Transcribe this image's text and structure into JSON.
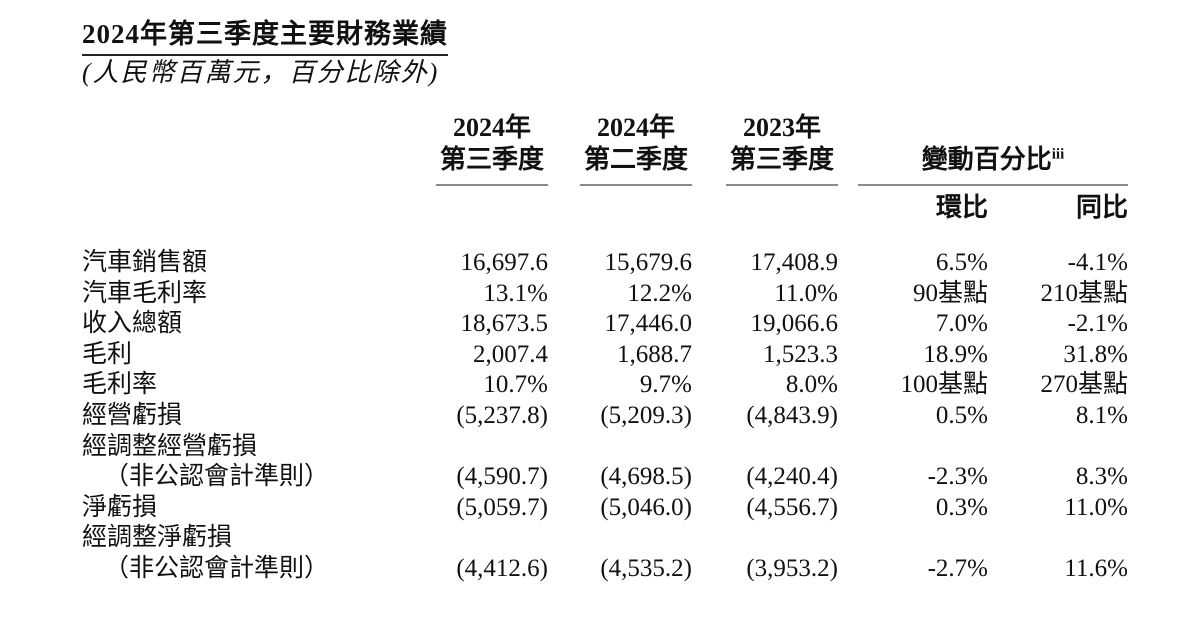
{
  "page": {
    "title": "2024年第三季度主要財務業績",
    "subtitle": "(人民幣百萬元，百分比除外)"
  },
  "table": {
    "col_headers": [
      {
        "line1": "2024年",
        "line2": "第三季度"
      },
      {
        "line1": "2024年",
        "line2": "第二季度"
      },
      {
        "line1": "2023年",
        "line2": "第三季度"
      }
    ],
    "change_group": {
      "label": "變動百分比",
      "superscript": "iii"
    },
    "sub_headers": {
      "qoq": "環比",
      "yoy": "同比"
    },
    "rows": [
      {
        "label": "汽車銷售額",
        "values": [
          "16,697.6",
          "15,679.6",
          "17,408.9",
          "6.5%",
          "-4.1%"
        ]
      },
      {
        "label": "汽車毛利率",
        "values": [
          "13.1%",
          "12.2%",
          "11.0%",
          "90基點",
          "210基點"
        ]
      },
      {
        "label": "收入總額",
        "values": [
          "18,673.5",
          "17,446.0",
          "19,066.6",
          "7.0%",
          "-2.1%"
        ]
      },
      {
        "label": "毛利",
        "values": [
          "2,007.4",
          "1,688.7",
          "1,523.3",
          "18.9%",
          "31.8%"
        ]
      },
      {
        "label": "毛利率",
        "values": [
          "10.7%",
          "9.7%",
          "8.0%",
          "100基點",
          "270基點"
        ]
      },
      {
        "label": "經營虧損",
        "values": [
          "(5,237.8)",
          "(5,209.3)",
          "(4,843.9)",
          "0.5%",
          "8.1%"
        ]
      },
      {
        "label": "經調整經營虧損",
        "values": [
          "",
          "",
          "",
          "",
          ""
        ]
      },
      {
        "label": "（非公認會計準則）",
        "values": [
          "(4,590.7)",
          "(4,698.5)",
          "(4,240.4)",
          "-2.3%",
          "8.3%"
        ]
      },
      {
        "label": "淨虧損",
        "values": [
          "(5,059.7)",
          "(5,046.0)",
          "(4,556.7)",
          "0.3%",
          "11.0%"
        ]
      },
      {
        "label": "經調整淨虧損",
        "values": [
          "",
          "",
          "",
          "",
          ""
        ]
      },
      {
        "label": "（非公認會計準則）",
        "values": [
          "(4,412.6)",
          "(4,535.2)",
          "(3,953.2)",
          "-2.7%",
          "11.6%"
        ]
      }
    ]
  },
  "colors": {
    "text": "#111111",
    "header_rule": "#8a8a8a",
    "title_underline": "#222222",
    "background": "#ffffff"
  }
}
